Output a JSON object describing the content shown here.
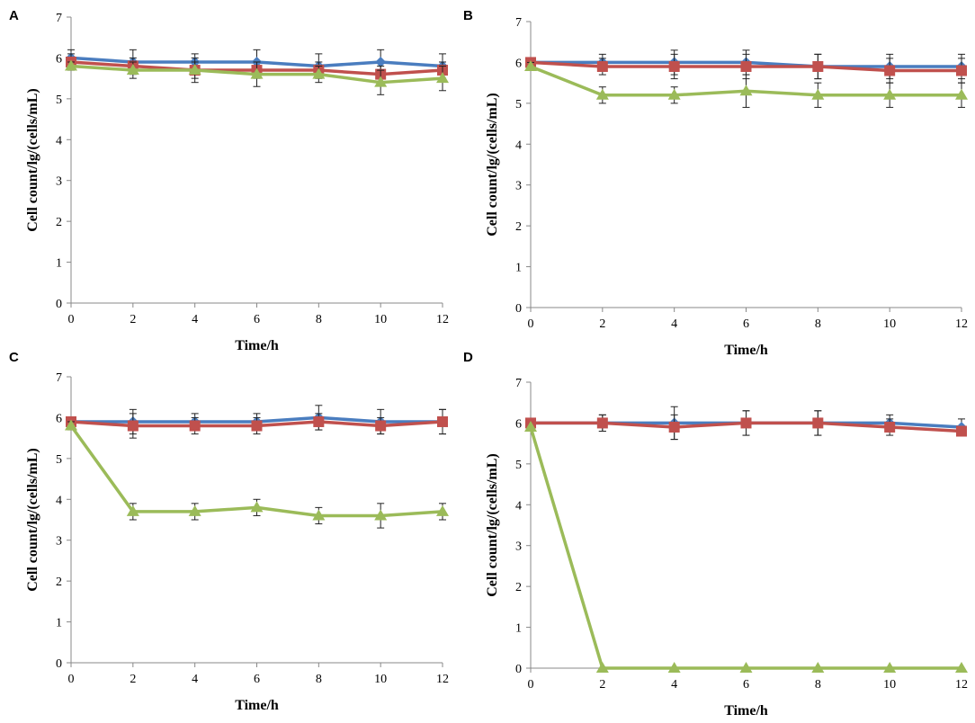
{
  "chart_data": [
    {
      "panel": "A",
      "type": "line",
      "xlabel": "Time/h",
      "ylabel": "Cell count/lg/(cells/mL)",
      "x": [
        0,
        2,
        4,
        6,
        8,
        10,
        12
      ],
      "xticks": [
        "0",
        "2",
        "4",
        "6",
        "8",
        "10",
        "12"
      ],
      "yticks": [
        "0",
        "1",
        "2",
        "3",
        "4",
        "5",
        "6",
        "7"
      ],
      "xlim": [
        0,
        12
      ],
      "ylim": [
        0,
        7
      ],
      "series": [
        {
          "name": "blue",
          "color": "#4a7dbf",
          "marker": "diamond",
          "values": [
            6.0,
            5.9,
            5.9,
            5.9,
            5.8,
            5.9,
            5.8
          ],
          "errors": [
            0.2,
            0.3,
            0.2,
            0.3,
            0.3,
            0.3,
            0.3
          ]
        },
        {
          "name": "red",
          "color": "#c0504d",
          "marker": "square",
          "values": [
            5.9,
            5.8,
            5.7,
            5.7,
            5.7,
            5.6,
            5.7
          ],
          "errors": [
            0.2,
            0.2,
            0.2,
            0.2,
            0.2,
            0.2,
            0.2
          ]
        },
        {
          "name": "green",
          "color": "#9bbb59",
          "marker": "triangle",
          "values": [
            5.8,
            5.7,
            5.7,
            5.6,
            5.6,
            5.4,
            5.5
          ],
          "errors": [
            0.1,
            0.2,
            0.3,
            0.3,
            0.2,
            0.3,
            0.3
          ]
        }
      ]
    },
    {
      "panel": "B",
      "type": "line",
      "xlabel": "Time/h",
      "ylabel": "Cell count/lg/(cells/mL)",
      "x": [
        0,
        2,
        4,
        6,
        8,
        10,
        12
      ],
      "xticks": [
        "0",
        "2",
        "4",
        "6",
        "8",
        "10",
        "12"
      ],
      "yticks": [
        "0",
        "1",
        "2",
        "3",
        "4",
        "5",
        "6",
        "7"
      ],
      "xlim": [
        0,
        12
      ],
      "ylim": [
        0,
        7
      ],
      "series": [
        {
          "name": "blue",
          "color": "#4a7dbf",
          "marker": "diamond",
          "values": [
            6.0,
            6.0,
            6.0,
            6.0,
            5.9,
            5.9,
            5.9
          ],
          "errors": [
            0.1,
            0.2,
            0.3,
            0.3,
            0.3,
            0.3,
            0.3
          ]
        },
        {
          "name": "red",
          "color": "#c0504d",
          "marker": "square",
          "values": [
            6.0,
            5.9,
            5.9,
            5.9,
            5.9,
            5.8,
            5.8
          ],
          "errors": [
            0.1,
            0.2,
            0.3,
            0.3,
            0.3,
            0.3,
            0.3
          ]
        },
        {
          "name": "green",
          "color": "#9bbb59",
          "marker": "triangle",
          "values": [
            5.9,
            5.2,
            5.2,
            5.3,
            5.2,
            5.2,
            5.2
          ],
          "errors": [
            0.1,
            0.2,
            0.2,
            0.4,
            0.3,
            0.3,
            0.3
          ]
        }
      ]
    },
    {
      "panel": "C",
      "type": "line",
      "xlabel": "Time/h",
      "ylabel": "Cell count/lg/(cells/mL)",
      "x": [
        0,
        2,
        4,
        6,
        8,
        10,
        12
      ],
      "xticks": [
        "0",
        "2",
        "4",
        "6",
        "8",
        "10",
        "12"
      ],
      "yticks": [
        "0",
        "1",
        "2",
        "3",
        "4",
        "5",
        "6",
        "7"
      ],
      "xlim": [
        0,
        12
      ],
      "ylim": [
        0,
        7
      ],
      "series": [
        {
          "name": "blue",
          "color": "#4a7dbf",
          "marker": "diamond",
          "values": [
            5.9,
            5.9,
            5.9,
            5.9,
            6.0,
            5.9,
            5.9
          ],
          "errors": [
            0.1,
            0.3,
            0.2,
            0.2,
            0.3,
            0.3,
            0.3
          ]
        },
        {
          "name": "red",
          "color": "#c0504d",
          "marker": "square",
          "values": [
            5.9,
            5.8,
            5.8,
            5.8,
            5.9,
            5.8,
            5.9
          ],
          "errors": [
            0.1,
            0.3,
            0.2,
            0.2,
            0.2,
            0.2,
            0.3
          ]
        },
        {
          "name": "green",
          "color": "#9bbb59",
          "marker": "triangle",
          "values": [
            5.8,
            3.7,
            3.7,
            3.8,
            3.6,
            3.6,
            3.7
          ],
          "errors": [
            0.1,
            0.2,
            0.2,
            0.2,
            0.2,
            0.3,
            0.2
          ]
        }
      ]
    },
    {
      "panel": "D",
      "type": "line",
      "xlabel": "Time/h",
      "ylabel": "Cell count/lg/(cells/mL)",
      "x": [
        0,
        2,
        4,
        6,
        8,
        10,
        12
      ],
      "xticks": [
        "0",
        "2",
        "4",
        "6",
        "8",
        "10",
        "12"
      ],
      "yticks": [
        "0",
        "1",
        "2",
        "3",
        "4",
        "5",
        "6",
        "7"
      ],
      "xlim": [
        0,
        12
      ],
      "ylim": [
        0,
        7
      ],
      "series": [
        {
          "name": "blue",
          "color": "#4a7dbf",
          "marker": "diamond",
          "values": [
            6.0,
            6.0,
            6.0,
            6.0,
            6.0,
            6.0,
            5.9
          ],
          "errors": [
            0.1,
            0.2,
            0.4,
            0.3,
            0.3,
            0.2,
            0.2
          ]
        },
        {
          "name": "red",
          "color": "#c0504d",
          "marker": "square",
          "values": [
            6.0,
            6.0,
            5.9,
            6.0,
            6.0,
            5.9,
            5.8
          ],
          "errors": [
            0.1,
            0.2,
            0.3,
            0.3,
            0.3,
            0.2,
            0.1
          ]
        },
        {
          "name": "green",
          "color": "#9bbb59",
          "marker": "triangle",
          "values": [
            5.9,
            0.0,
            0.0,
            0.0,
            0.0,
            0.0,
            0.0
          ],
          "errors": [
            0,
            0,
            0,
            0,
            0,
            0,
            0
          ]
        }
      ]
    }
  ]
}
